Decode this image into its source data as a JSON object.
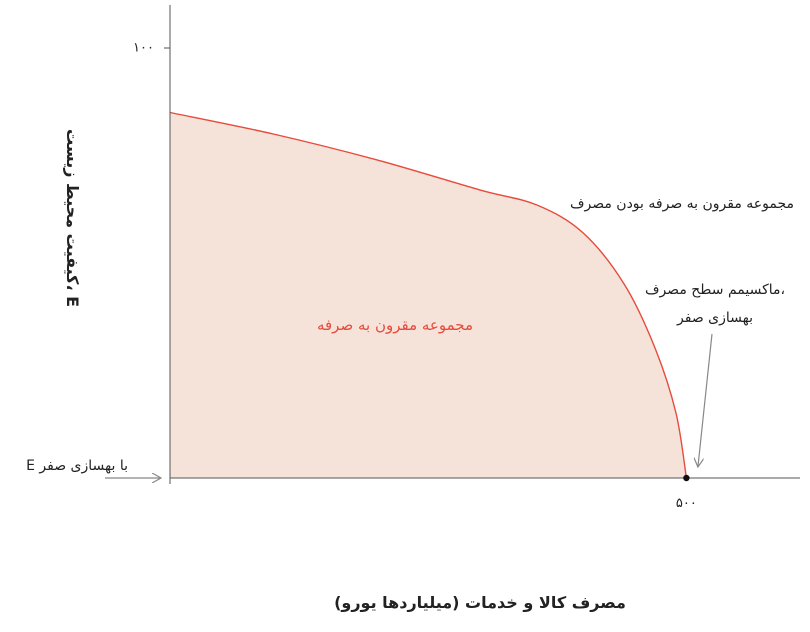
{
  "chart_data": {
    "type": "area",
    "xlabel": "مصرف کالا و خدمات (میلیاردها یورو)",
    "ylabel": "کیفیت محیط زیست، E",
    "x_ticks": [
      {
        "value": 500,
        "label": "۵۰۰"
      }
    ],
    "y_ticks": [
      {
        "value": 100,
        "label": "۱۰۰"
      }
    ],
    "xlim": [
      0,
      610
    ],
    "ylim": [
      0,
      110
    ],
    "grid": false,
    "series": [
      {
        "name": "مجموعه مقرون به صرفه بودن مصرف",
        "points": [
          {
            "x": 0,
            "y": 85
          },
          {
            "x": 100,
            "y": 80
          },
          {
            "x": 200,
            "y": 74
          },
          {
            "x": 300,
            "y": 67
          },
          {
            "x": 355,
            "y": 63.5
          },
          {
            "x": 400,
            "y": 57
          },
          {
            "x": 440,
            "y": 45
          },
          {
            "x": 470,
            "y": 30
          },
          {
            "x": 490,
            "y": 15
          },
          {
            "x": 500,
            "y": 0
          }
        ],
        "color": "#e64b3c",
        "fill": "#f5e3da"
      }
    ],
    "annotations": {
      "region_label": "مجموعه مقرون به صرفه",
      "frontier_label": "مجموعه مقرون به صرفه بودن مصرف",
      "max_point_line1": "ماکسیمم سطح مصرف،",
      "max_point_line2": "بهسازی صفر",
      "zero_improvement_label": "E با بهسازی صفر"
    },
    "max_point": {
      "x": 500,
      "y": 0
    }
  }
}
